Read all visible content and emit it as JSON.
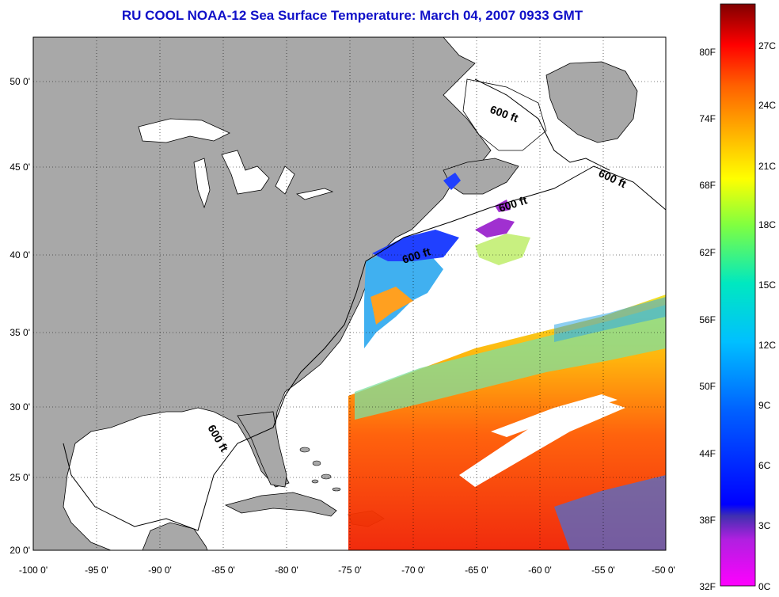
{
  "title": "RU COOL  NOAA-12  Sea Surface Temperature:  March 04, 2007 0933 GMT",
  "lat_ticks": [
    "50 0'",
    "45 0'",
    "40 0'",
    "35 0'",
    "30 0'",
    "25 0'",
    "20 0'"
  ],
  "lon_ticks": [
    "-100 0'",
    "-95 0'",
    "-90 0'",
    "-85 0'",
    "-80 0'",
    "-75 0'",
    "-70 0'",
    "-65 0'",
    "-60 0'",
    "-55 0'",
    "-50 0'"
  ],
  "contour_labels": [
    "600 ft",
    "600 ft",
    "600 ft",
    "600 ft",
    "600 ft"
  ],
  "colorbar": {
    "fahrenheit": [
      "80F",
      "74F",
      "68F",
      "62F",
      "56F",
      "50F",
      "44F",
      "38F",
      "32F"
    ],
    "celsius": [
      "27C",
      "24C",
      "21C",
      "18C",
      "15C",
      "12C",
      "9C",
      "6C",
      "3C",
      "0C"
    ]
  },
  "colors": {
    "land": "#a8a8a8",
    "ocean_no_data": "#ffffff",
    "title": "#1010c8"
  }
}
